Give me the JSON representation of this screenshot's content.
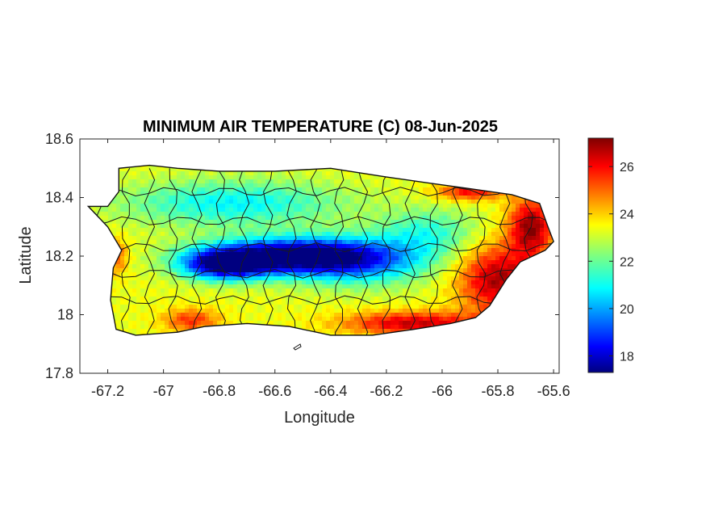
{
  "chart_data": {
    "type": "heatmap",
    "title": "MINIMUM AIR TEMPERATURE (C) 08-Jun-2025",
    "xlabel": "Longitude",
    "ylabel": "Latitude",
    "xlim": [
      -67.3,
      -65.58
    ],
    "ylim": [
      17.8,
      18.6
    ],
    "xticks": [
      -67.2,
      -67,
      -66.8,
      -66.6,
      -66.4,
      -66.2,
      -66,
      -65.8,
      -65.6
    ],
    "xtick_labels": [
      "-67.2",
      "-67",
      "-66.8",
      "-66.6",
      "-66.4",
      "-66.2",
      "-66",
      "-65.8",
      "-65.6"
    ],
    "yticks": [
      17.8,
      18,
      18.2,
      18.4,
      18.6
    ],
    "ytick_labels": [
      "17.8",
      "18",
      "18.2",
      "18.4",
      "18.6"
    ],
    "colorbar": {
      "colormap": "jet",
      "range": [
        17.3,
        27.2
      ],
      "ticks": [
        18,
        20,
        22,
        24,
        26
      ],
      "tick_labels": [
        "18",
        "20",
        "22",
        "24",
        "26"
      ]
    },
    "grid": false,
    "island_outline": [
      [
        -67.27,
        18.37
      ],
      [
        -67.2,
        18.37
      ],
      [
        -67.16,
        18.42
      ],
      [
        -67.16,
        18.5
      ],
      [
        -67.05,
        18.51
      ],
      [
        -66.95,
        18.5
      ],
      [
        -66.8,
        18.49
      ],
      [
        -66.6,
        18.49
      ],
      [
        -66.4,
        18.5
      ],
      [
        -66.2,
        18.47
      ],
      [
        -66.05,
        18.45
      ],
      [
        -65.9,
        18.43
      ],
      [
        -65.75,
        18.41
      ],
      [
        -65.65,
        18.38
      ],
      [
        -65.62,
        18.3
      ],
      [
        -65.6,
        18.25
      ],
      [
        -65.63,
        18.22
      ],
      [
        -65.72,
        18.18
      ],
      [
        -65.77,
        18.12
      ],
      [
        -65.83,
        18.03
      ],
      [
        -65.88,
        17.99
      ],
      [
        -65.97,
        17.97
      ],
      [
        -66.1,
        17.95
      ],
      [
        -66.25,
        17.93
      ],
      [
        -66.4,
        17.93
      ],
      [
        -66.55,
        17.96
      ],
      [
        -66.7,
        17.97
      ],
      [
        -66.85,
        17.96
      ],
      [
        -66.95,
        17.94
      ],
      [
        -67.1,
        17.93
      ],
      [
        -67.17,
        17.95
      ],
      [
        -67.19,
        18.05
      ],
      [
        -67.18,
        18.16
      ],
      [
        -67.15,
        18.22
      ],
      [
        -67.2,
        18.3
      ]
    ],
    "field_features": [
      {
        "lon": -66.55,
        "lat": 18.2,
        "value": 17.3,
        "spread_lon": 0.3,
        "spread_lat": 0.06
      },
      {
        "lon": -66.78,
        "lat": 18.17,
        "value": 18.0,
        "spread_lon": 0.15,
        "spread_lat": 0.05
      },
      {
        "lon": -66.3,
        "lat": 18.18,
        "value": 20.3,
        "spread_lon": 0.25,
        "spread_lat": 0.08
      },
      {
        "lon": -66.75,
        "lat": 18.38,
        "value": 21.0,
        "spread_lon": 0.4,
        "spread_lat": 0.08
      },
      {
        "lon": -66.05,
        "lat": 18.28,
        "value": 21.5,
        "spread_lon": 0.18,
        "spread_lat": 0.08
      },
      {
        "lon": -65.68,
        "lat": 18.3,
        "value": 27.0,
        "spread_lon": 0.08,
        "spread_lat": 0.1
      },
      {
        "lon": -65.8,
        "lat": 18.12,
        "value": 26.8,
        "spread_lon": 0.14,
        "spread_lat": 0.12
      },
      {
        "lon": -66.1,
        "lat": 17.97,
        "value": 26.5,
        "spread_lon": 0.25,
        "spread_lat": 0.04
      },
      {
        "lon": -66.9,
        "lat": 17.98,
        "value": 25.5,
        "spread_lon": 0.1,
        "spread_lat": 0.04
      },
      {
        "lon": -67.17,
        "lat": 18.2,
        "value": 25.2,
        "spread_lon": 0.04,
        "spread_lat": 0.06
      },
      {
        "lon": -65.9,
        "lat": 18.42,
        "value": 26.0,
        "spread_lon": 0.12,
        "spread_lat": 0.03
      }
    ],
    "background_value": 23.3
  }
}
